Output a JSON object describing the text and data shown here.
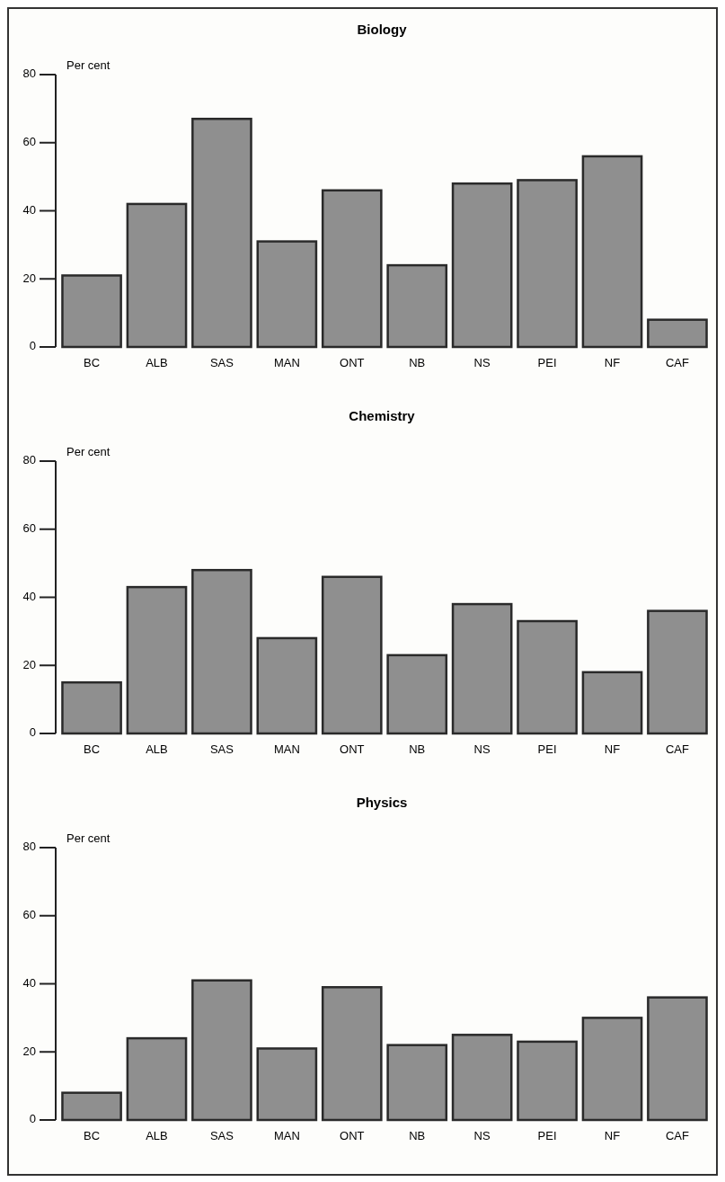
{
  "chart_data": [
    {
      "type": "bar",
      "title": "Biology",
      "ylabel": "Per cent",
      "categories": [
        "BC",
        "ALB",
        "SAS",
        "MAN",
        "ONT",
        "NB",
        "NS",
        "PEI",
        "NF",
        "CAF"
      ],
      "values": [
        21,
        42,
        67,
        31,
        46,
        24,
        48,
        49,
        56,
        8
      ],
      "color": "#8f8f8f",
      "ylim": [
        0,
        80
      ],
      "yticks": [
        0,
        20,
        40,
        60,
        80
      ],
      "grid": false
    },
    {
      "type": "bar",
      "title": "Chemistry",
      "ylabel": "Per cent",
      "categories": [
        "BC",
        "ALB",
        "SAS",
        "MAN",
        "ONT",
        "NB",
        "NS",
        "PEI",
        "NF",
        "CAF"
      ],
      "values": [
        15,
        43,
        48,
        28,
        46,
        23,
        38,
        33,
        18,
        36
      ],
      "color": "#8f8f8f",
      "ylim": [
        0,
        80
      ],
      "yticks": [
        0,
        20,
        40,
        60,
        80
      ],
      "grid": false
    },
    {
      "type": "bar",
      "title": "Physics",
      "ylabel": "Per cent",
      "categories": [
        "BC",
        "ALB",
        "SAS",
        "MAN",
        "ONT",
        "NB",
        "NS",
        "PEI",
        "NF",
        "CAF"
      ],
      "values": [
        8,
        24,
        41,
        21,
        39,
        22,
        25,
        23,
        30,
        36
      ],
      "color": "#8f8f8f",
      "ylim": [
        0,
        80
      ],
      "yticks": [
        0,
        20,
        40,
        60,
        80
      ],
      "grid": false
    }
  ]
}
